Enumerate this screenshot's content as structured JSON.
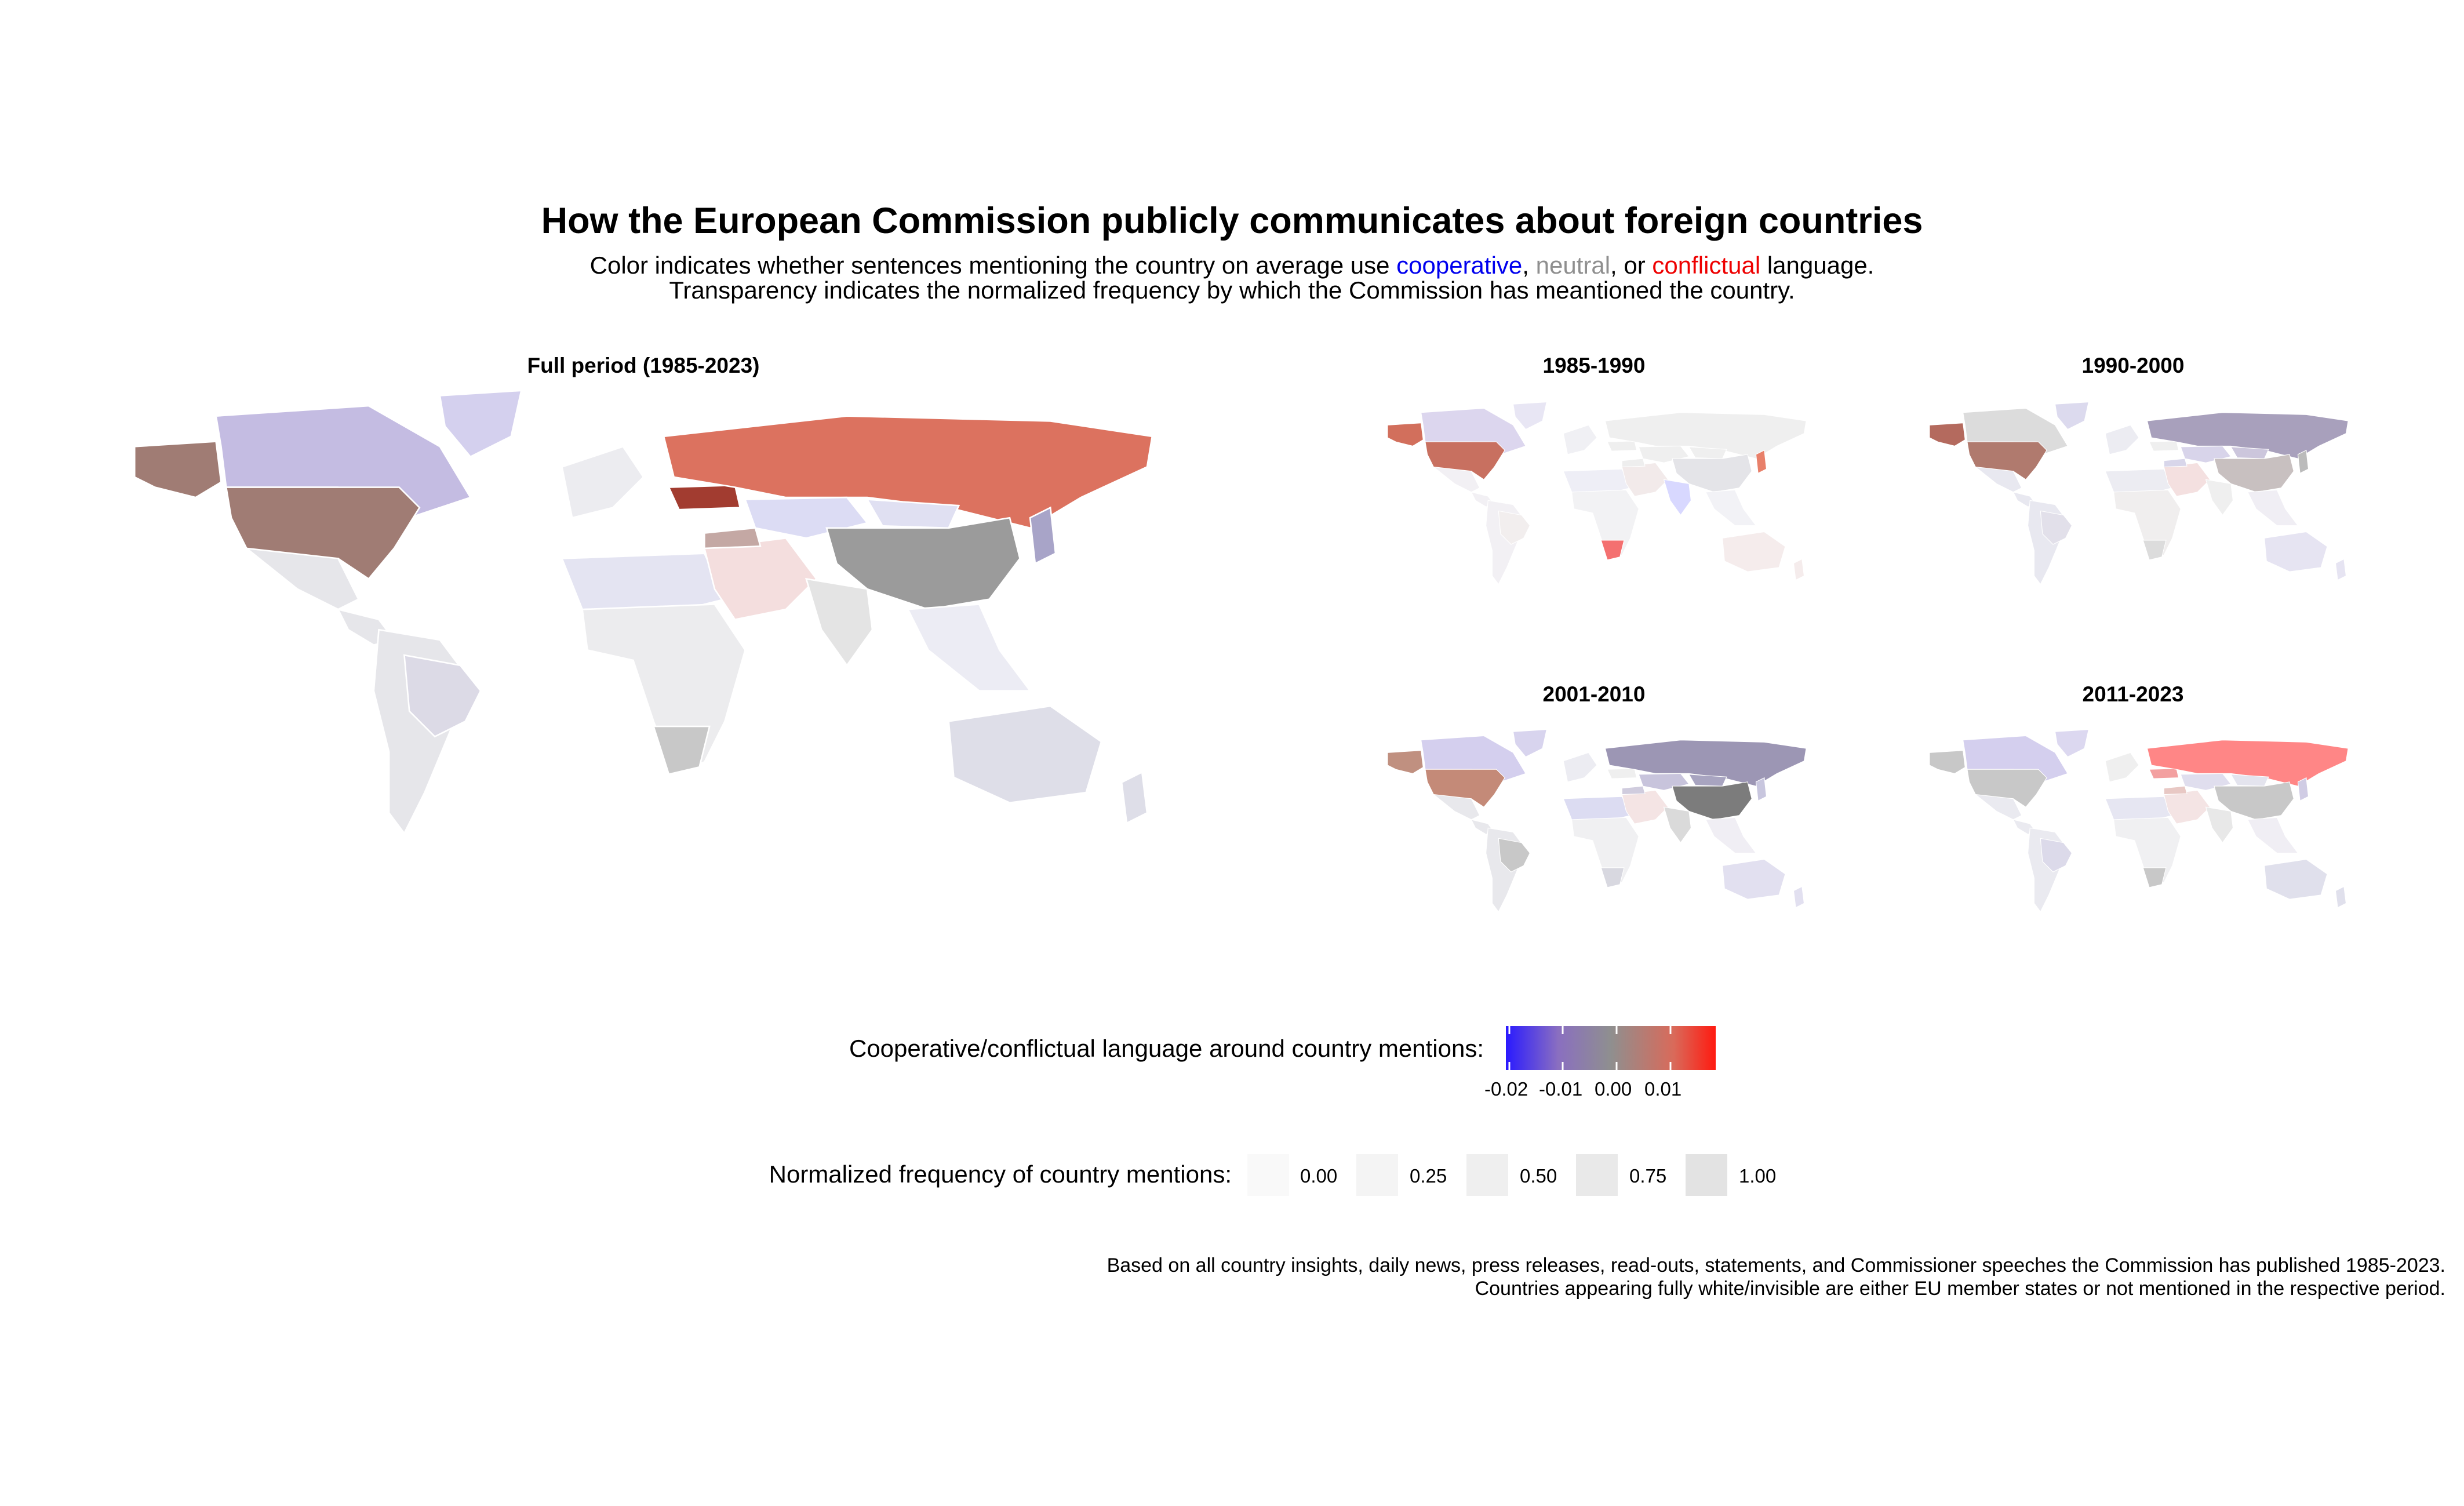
{
  "title": "How the European Commission publicly communicates about foreign countries",
  "subtitle": {
    "line1_prefix": "Color indicates whether sentences mentioning the country on average use ",
    "coop": "cooperative",
    "sep1": ", ",
    "neutral": "neutral",
    "sep2": ", or ",
    "conflict": "conflictual",
    "line1_suffix": " language.",
    "line2": "Transparency indicates the normalized frequency by which the Commission has meantioned the country."
  },
  "colors": {
    "cooperative": "#0000ee",
    "neutral": "#8f8f8f",
    "conflictual": "#ee0000",
    "gradient": [
      "#2a1aff",
      "#8a6fc0",
      "#8f8f8f",
      "#d96a5a",
      "#ff1a10"
    ]
  },
  "panels": [
    {
      "title": "Full period (1985-2023)",
      "highlights": {
        "usa": "#a07c74",
        "canada": "#c4bce2",
        "alaska": "#a07c74",
        "russia": "#dc725f",
        "ukraine": "#a23c30",
        "china": "#9b9b9b",
        "kazakhstan": "#dcdcf4",
        "mongolia": "#e0e0f2",
        "south_america": "#e6e6ea",
        "brazil": "#dcdae6",
        "africa": "#ececee",
        "south_africa": "#c8c8c8",
        "australia": "#dedee8",
        "india": "#e4e4e4",
        "middle_east": "#f4dede",
        "greenland": "#d4d0ee",
        "north_africa": "#e4e4f2",
        "turkey": "#c4a8a4",
        "japan": "#a8a4c8",
        "europe_nonEU": "#ececf0",
        "se_asia": "#ececf4"
      }
    },
    {
      "title": "1985-1990",
      "highlights": {
        "usa": "#c87060",
        "canada": "#dcd6ee",
        "alaska": "#d26f5c",
        "russia": "#efefef",
        "china": "#e4e4e8",
        "kazakhstan": "#efefef",
        "mongolia": "#efefef",
        "south_america": "#f2f0f4",
        "brazil": "#f2eeee",
        "africa": "#f2f2f4",
        "south_africa": "#f47070",
        "australia": "#f5ecec",
        "india": "#d8d8ff",
        "middle_east": "#f2eaea",
        "greenland": "#e8e6f4",
        "north_africa": "#eeeef6",
        "turkey": "#eeeeee",
        "japan": "#e8806a",
        "europe_nonEU": "#f0f0f4",
        "se_asia": "#f2f2f6"
      }
    },
    {
      "title": "1990-2000",
      "highlights": {
        "usa": "#b07a6e",
        "canada": "#dcdcdc",
        "alaska": "#b46a5e",
        "russia": "#a8a0bc",
        "china": "#c8c0c0",
        "kazakhstan": "#d8d4ea",
        "mongolia": "#ccc6dc",
        "south_america": "#e8e8f0",
        "brazil": "#e2e0ea",
        "africa": "#f0eeee",
        "south_africa": "#dcdcdc",
        "australia": "#e6e4f2",
        "india": "#efefef",
        "middle_east": "#f4e0e0",
        "greenland": "#dcdaee",
        "north_africa": "#ececf2",
        "turkey": "#d8d6ea",
        "japan": "#bbbbbb",
        "europe_nonEU": "#ececf2",
        "se_asia": "#f0eef4"
      }
    },
    {
      "title": "2001-2010",
      "highlights": {
        "usa": "#c48a78",
        "canada": "#d4cfee",
        "alaska": "#c09080",
        "russia": "#9c96b4",
        "china": "#7c7c7c",
        "kazakhstan": "#c8c4dc",
        "mongolia": "#a8a4c0",
        "south_america": "#e8e8ec",
        "brazil": "#c8c8c8",
        "africa": "#f0f0f2",
        "south_africa": "#d8d8e0",
        "australia": "#e2e0f0",
        "india": "#dadada",
        "middle_east": "#f4e4e4",
        "greenland": "#d8d4ee",
        "north_africa": "#dcdcf2",
        "turkey": "#d0ccde",
        "japan": "#c8c6de",
        "europe_nonEU": "#ececf2",
        "se_asia": "#f0eef4"
      }
    },
    {
      "title": "2011-2023",
      "highlights": {
        "usa": "#c8c8c8",
        "canada": "#d4cfee",
        "alaska": "#c8c8c8",
        "russia": "#ff8686",
        "ukraine": "#f3a0a0",
        "china": "#c8c8c8",
        "kazakhstan": "#e0deee",
        "mongolia": "#e4e4ee",
        "south_america": "#eaeaf0",
        "brazil": "#dcdaea",
        "africa": "#f0f0f2",
        "south_africa": "#c8c8c8",
        "australia": "#e0e0ec",
        "india": "#e8e8e8",
        "middle_east": "#f4e4e4",
        "greenland": "#dcd8f0",
        "north_africa": "#e6e6f2",
        "turkey": "#e8c8c4",
        "japan": "#d0cce4",
        "europe_nonEU": "#efefef",
        "se_asia": "#f0eef4"
      }
    }
  ],
  "legend_color": {
    "title": "Cooperative/conflictual language around country mentions:",
    "ticks": [
      "-0.02",
      "-0.01",
      "0.00",
      "0.01"
    ]
  },
  "legend_alpha": {
    "title": "Normalized frequency of country mentions:",
    "ticks": [
      "0.00",
      "0.25",
      "0.50",
      "0.75",
      "1.00"
    ],
    "fills": [
      "#f9f9f9",
      "#f4f4f4",
      "#efefef",
      "#e9e9e9",
      "#e3e3e3"
    ]
  },
  "footnote": {
    "line1": "Based on all country insights, daily news, press releases, read-outs, statements, and Commissioner speeches the Commission has published 1985-2023.",
    "line2": "Countries appearing fully white/invisible are either EU member states or not mentioned in the respective period."
  }
}
